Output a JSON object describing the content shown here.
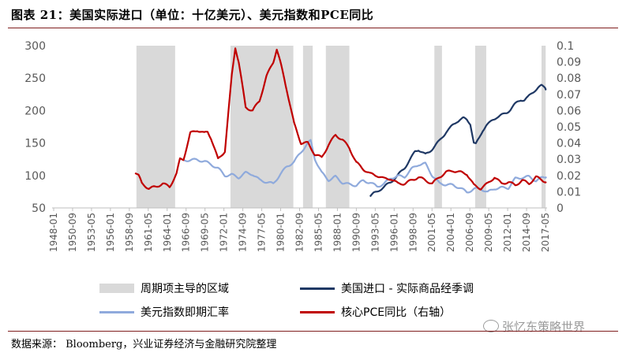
{
  "title": "图表 21：美国实际进口（单位：十亿美元）、美元指数和PCE同比",
  "source": "数据来源： Bloomberg，兴业证券经济与金融研究院整理",
  "watermark": "张忆东策略世界",
  "chart_data": {
    "type": "line",
    "x_tick_labels": [
      "1948-01",
      "1950-09",
      "1953-05",
      "1956-01",
      "1958-09",
      "1961-05",
      "1964-01",
      "1966-09",
      "1969-05",
      "1972-01",
      "1974-09",
      "1977-05",
      "1980-01",
      "1982-09",
      "1985-05",
      "1988-01",
      "1990-09",
      "1993-05",
      "1996-01",
      "1998-09",
      "2001-05",
      "2004-01",
      "2006-09",
      "2009-05",
      "2012-01",
      "2014-09",
      "2017-05"
    ],
    "y_left": {
      "ticks": [
        50,
        100,
        150,
        200,
        250,
        300
      ],
      "lim": [
        50,
        300
      ]
    },
    "y_right": {
      "ticks": [
        0,
        0.01,
        0.02,
        0.03,
        0.04,
        0.05,
        0.06,
        0.07,
        0.08,
        0.09,
        0.1
      ],
      "lim": [
        0,
        0.1
      ]
    },
    "x_range": [
      1948.0,
      2019.6
    ],
    "shaded_periods": [
      [
        1960.2,
        1965.8
      ],
      [
        1973.8,
        1982.9
      ],
      [
        1984.3,
        1985.7
      ],
      [
        1987.6,
        1991.0
      ],
      [
        2003.3,
        2004.4
      ],
      [
        2009.2,
        2010.8
      ],
      [
        2018.8,
        2019.4
      ]
    ],
    "series": [
      {
        "name": "周期项主导的区域",
        "color": "#d9d9d9",
        "kind": "shade"
      },
      {
        "name": "美国进口 - 实际商品经季调",
        "color": "#1f3864",
        "axis": "left",
        "points": [
          [
            1994.0,
            68
          ],
          [
            1994.5,
            72
          ],
          [
            1995.0,
            75
          ],
          [
            1995.5,
            79
          ],
          [
            1996.0,
            82
          ],
          [
            1996.5,
            86
          ],
          [
            1997.0,
            90
          ],
          [
            1997.5,
            95
          ],
          [
            1998.0,
            100
          ],
          [
            1998.5,
            106
          ],
          [
            1999.0,
            112
          ],
          [
            1999.5,
            120
          ],
          [
            2000.0,
            128
          ],
          [
            2000.5,
            137
          ],
          [
            2001.0,
            140
          ],
          [
            2001.5,
            136
          ],
          [
            2002.0,
            132
          ],
          [
            2002.5,
            136
          ],
          [
            2003.0,
            141
          ],
          [
            2003.5,
            147
          ],
          [
            2004.0,
            153
          ],
          [
            2004.5,
            160
          ],
          [
            2005.0,
            167
          ],
          [
            2005.5,
            172
          ],
          [
            2006.0,
            178
          ],
          [
            2006.5,
            183
          ],
          [
            2007.0,
            186
          ],
          [
            2007.5,
            188
          ],
          [
            2008.0,
            186
          ],
          [
            2008.5,
            180
          ],
          [
            2009.0,
            150
          ],
          [
            2009.3,
            148
          ],
          [
            2009.8,
            158
          ],
          [
            2010.3,
            170
          ],
          [
            2010.8,
            177
          ],
          [
            2011.3,
            181
          ],
          [
            2011.8,
            186
          ],
          [
            2012.3,
            190
          ],
          [
            2012.8,
            192
          ],
          [
            2013.3,
            194
          ],
          [
            2013.8,
            197
          ],
          [
            2014.3,
            202
          ],
          [
            2014.8,
            208
          ],
          [
            2015.3,
            213
          ],
          [
            2015.8,
            217
          ],
          [
            2016.3,
            216
          ],
          [
            2016.8,
            220
          ],
          [
            2017.3,
            226
          ],
          [
            2017.8,
            231
          ],
          [
            2018.3,
            235
          ],
          [
            2018.8,
            238
          ],
          [
            2019.3,
            236
          ],
          [
            2019.5,
            232
          ]
        ]
      },
      {
        "name": "美元指数即期汇率",
        "color": "#8faadc",
        "axis": "left",
        "points": [
          [
            1967.0,
            123
          ],
          [
            1968.0,
            124
          ],
          [
            1969.0,
            124
          ],
          [
            1970.0,
            122
          ],
          [
            1971.0,
            117
          ],
          [
            1972.0,
            111
          ],
          [
            1973.0,
            100
          ],
          [
            1974.0,
            101
          ],
          [
            1975.0,
            97
          ],
          [
            1976.0,
            104
          ],
          [
            1977.0,
            102
          ],
          [
            1978.0,
            93
          ],
          [
            1979.0,
            90
          ],
          [
            1980.0,
            87
          ],
          [
            1981.0,
            102
          ],
          [
            1982.0,
            114
          ],
          [
            1983.0,
            121
          ],
          [
            1984.0,
            136
          ],
          [
            1985.0,
            150
          ],
          [
            1985.4,
            153
          ],
          [
            1986.0,
            126
          ],
          [
            1987.0,
            104
          ],
          [
            1988.0,
            93
          ],
          [
            1989.0,
            98
          ],
          [
            1990.0,
            89
          ],
          [
            1991.0,
            86
          ],
          [
            1992.0,
            85
          ],
          [
            1993.0,
            92
          ],
          [
            1994.0,
            89
          ],
          [
            1995.0,
            83
          ],
          [
            1996.0,
            87
          ],
          [
            1997.0,
            96
          ],
          [
            1998.0,
            99
          ],
          [
            1999.0,
            98
          ],
          [
            2000.0,
            110
          ],
          [
            2001.0,
            117
          ],
          [
            2002.0,
            118
          ],
          [
            2003.0,
            100
          ],
          [
            2004.0,
            88
          ],
          [
            2005.0,
            86
          ],
          [
            2006.0,
            85
          ],
          [
            2007.0,
            81
          ],
          [
            2008.0,
            74
          ],
          [
            2009.0,
            79
          ],
          [
            2010.0,
            80
          ],
          [
            2011.0,
            74
          ],
          [
            2012.0,
            80
          ],
          [
            2013.0,
            81
          ],
          [
            2014.0,
            81
          ],
          [
            2015.0,
            95
          ],
          [
            2016.0,
            97
          ],
          [
            2017.0,
            98
          ],
          [
            2018.0,
            92
          ],
          [
            2019.0,
            97
          ],
          [
            2019.5,
            98
          ]
        ]
      },
      {
        "name": "核心PCE同比（右轴）",
        "color": "#c00000",
        "axis": "right",
        "points": [
          [
            1960.0,
            0.022
          ],
          [
            1960.5,
            0.02
          ],
          [
            1961.0,
            0.015
          ],
          [
            1962.0,
            0.012
          ],
          [
            1963.0,
            0.013
          ],
          [
            1964.0,
            0.015
          ],
          [
            1965.0,
            0.013
          ],
          [
            1966.0,
            0.021
          ],
          [
            1966.5,
            0.03
          ],
          [
            1967.0,
            0.03
          ],
          [
            1968.0,
            0.046
          ],
          [
            1969.0,
            0.048
          ],
          [
            1970.0,
            0.046
          ],
          [
            1970.5,
            0.047
          ],
          [
            1971.0,
            0.043
          ],
          [
            1972.0,
            0.03
          ],
          [
            1973.0,
            0.035
          ],
          [
            1974.0,
            0.082
          ],
          [
            1974.5,
            0.099
          ],
          [
            1975.0,
            0.09
          ],
          [
            1976.0,
            0.062
          ],
          [
            1977.0,
            0.06
          ],
          [
            1978.0,
            0.066
          ],
          [
            1979.0,
            0.081
          ],
          [
            1980.0,
            0.09
          ],
          [
            1980.5,
            0.098
          ],
          [
            1981.0,
            0.09
          ],
          [
            1982.0,
            0.072
          ],
          [
            1983.0,
            0.052
          ],
          [
            1984.0,
            0.04
          ],
          [
            1985.0,
            0.04
          ],
          [
            1986.0,
            0.033
          ],
          [
            1987.0,
            0.031
          ],
          [
            1988.0,
            0.039
          ],
          [
            1989.0,
            0.045
          ],
          [
            1990.0,
            0.042
          ],
          [
            1991.0,
            0.037
          ],
          [
            1992.0,
            0.028
          ],
          [
            1993.0,
            0.024
          ],
          [
            1994.0,
            0.021
          ],
          [
            1995.0,
            0.02
          ],
          [
            1996.0,
            0.018
          ],
          [
            1997.0,
            0.018
          ],
          [
            1998.0,
            0.015
          ],
          [
            1999.0,
            0.015
          ],
          [
            2000.0,
            0.017
          ],
          [
            2001.0,
            0.019
          ],
          [
            2002.0,
            0.017
          ],
          [
            2003.0,
            0.015
          ],
          [
            2004.0,
            0.019
          ],
          [
            2005.0,
            0.022
          ],
          [
            2006.0,
            0.023
          ],
          [
            2007.0,
            0.022
          ],
          [
            2008.0,
            0.021
          ],
          [
            2009.0,
            0.014
          ],
          [
            2010.0,
            0.012
          ],
          [
            2011.0,
            0.015
          ],
          [
            2012.0,
            0.019
          ],
          [
            2013.0,
            0.015
          ],
          [
            2014.0,
            0.016
          ],
          [
            2015.0,
            0.014
          ],
          [
            2016.0,
            0.017
          ],
          [
            2017.0,
            0.015
          ],
          [
            2018.0,
            0.019
          ],
          [
            2019.0,
            0.017
          ],
          [
            2019.5,
            0.016
          ]
        ]
      }
    ]
  }
}
